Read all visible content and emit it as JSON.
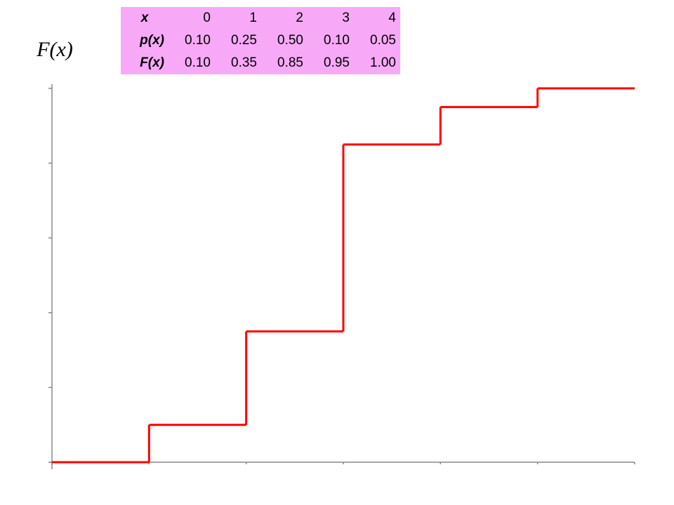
{
  "table": {
    "rows": [
      [
        "x",
        "0",
        "1",
        "2",
        "3",
        "4"
      ],
      [
        "p(x)",
        "0.10",
        "0.25",
        "0.50",
        "0.10",
        "0.05"
      ],
      [
        "F(x)",
        "0.10",
        "0.35",
        "0.85",
        "0.95",
        "1.00"
      ]
    ]
  },
  "chart_data": {
    "type": "step",
    "ylabel": "F(x)",
    "x": [
      0,
      1,
      2,
      3,
      4
    ],
    "values": [
      0.1,
      0.35,
      0.85,
      0.95,
      1.0
    ],
    "color": "#ff0000",
    "xlim": [
      -1,
      5
    ],
    "ylim": [
      0,
      1
    ],
    "xticks": [
      -1,
      0,
      1,
      2,
      3,
      4,
      5
    ],
    "yticks": [
      0,
      0.2,
      0.4,
      0.6,
      0.8,
      1.0
    ]
  }
}
